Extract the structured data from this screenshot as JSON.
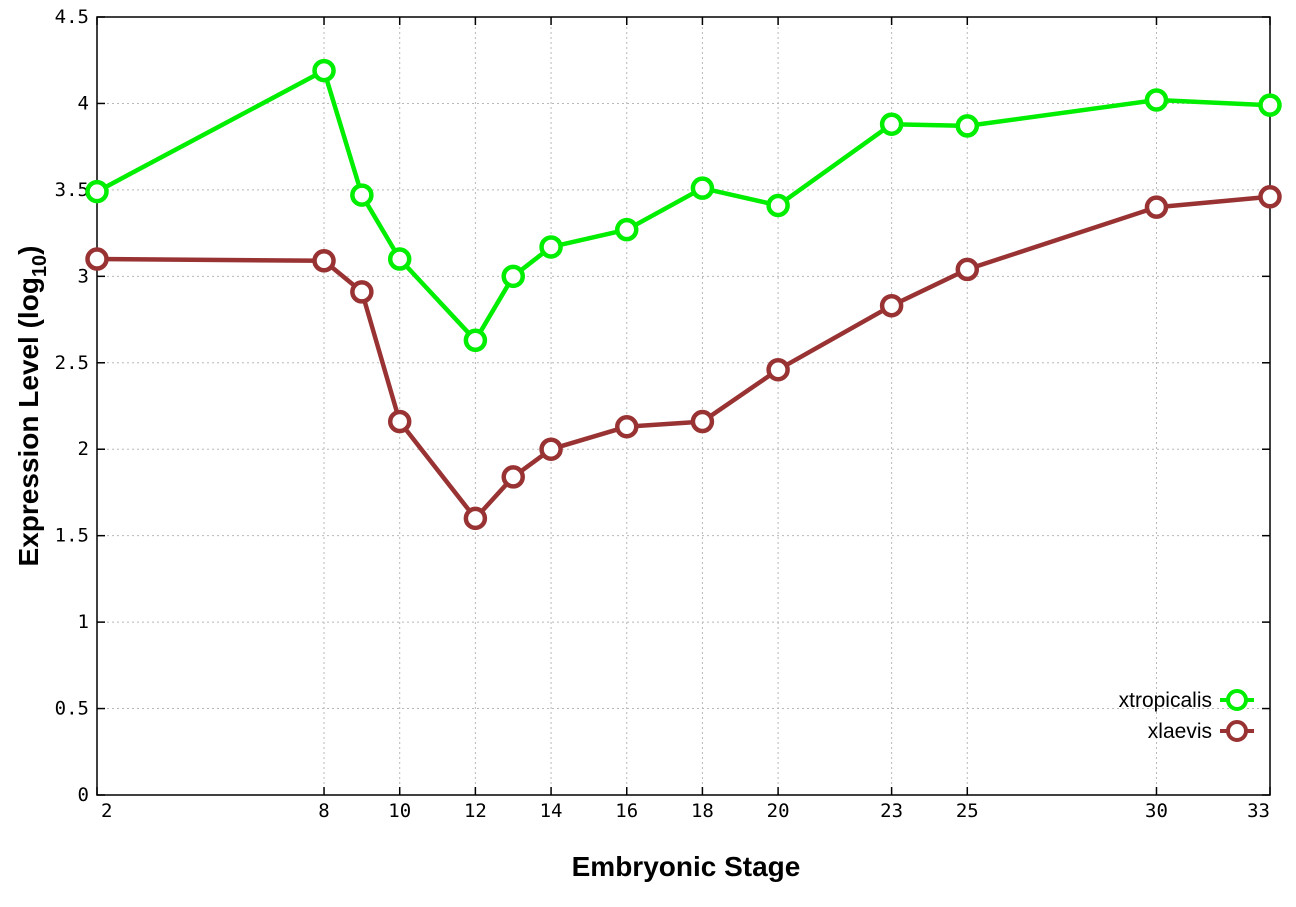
{
  "chart_data": {
    "type": "line",
    "xlabel": "Embryonic Stage",
    "ylabel_main": "Expression Level (log",
    "ylabel_sub": "10",
    "ylabel_close": ")",
    "xlim": [
      2,
      33
    ],
    "ylim": [
      0,
      4.5
    ],
    "x_ticks": [
      2,
      8,
      10,
      12,
      14,
      16,
      18,
      20,
      23,
      25,
      30,
      33
    ],
    "x_tick_labels": [
      "2",
      "8",
      "10",
      "12",
      "14",
      "16",
      "18",
      "20",
      "23",
      "25",
      "30",
      "33"
    ],
    "y_ticks": [
      0,
      0.5,
      1,
      1.5,
      2,
      2.5,
      3,
      3.5,
      4,
      4.5
    ],
    "y_tick_labels": [
      "0",
      "0.5",
      "1",
      "1.5",
      "2",
      "2.5",
      "3",
      "3.5",
      "4",
      "4.5"
    ],
    "grid": true,
    "legend_position": "bottom-right",
    "x": [
      2,
      8,
      9,
      10,
      12,
      13,
      14,
      16,
      18,
      20,
      23,
      25,
      30,
      33
    ],
    "series": [
      {
        "name": "xtropicalis",
        "color": "#00ee00",
        "values": [
          3.49,
          4.19,
          3.47,
          3.1,
          2.63,
          3.0,
          3.17,
          3.27,
          3.51,
          3.41,
          3.88,
          3.87,
          4.02,
          3.99
        ]
      },
      {
        "name": "xlaevis",
        "color": "#993333",
        "values": [
          3.1,
          3.09,
          2.91,
          2.16,
          1.6,
          1.84,
          2.0,
          2.13,
          2.16,
          2.46,
          2.83,
          3.04,
          3.4,
          3.46
        ]
      }
    ]
  }
}
